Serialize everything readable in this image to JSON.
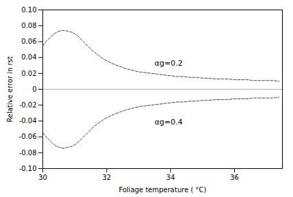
{
  "chart_data": {
    "type": "line",
    "xlabel": "Foliage temperature ( °C)",
    "ylabel": "Relative error in rst",
    "xlim": [
      30,
      37.5
    ],
    "ylim": [
      -0.1,
      0.1
    ],
    "xticks": [
      30,
      32,
      34,
      36
    ],
    "yticks": [
      {
        "value": -0.1,
        "label": "-0.10"
      },
      -0.08,
      -0.06,
      -0.04,
      -0.02,
      0,
      0.02,
      0.04,
      0.06,
      0.08,
      {
        "value": 0.1,
        "label": "0.10"
      }
    ],
    "x": [
      30.0,
      30.1,
      30.2,
      30.3,
      30.4,
      30.5,
      30.6,
      30.7,
      30.8,
      30.9,
      31.0,
      31.1,
      31.2,
      31.3,
      31.4,
      31.5,
      31.6,
      31.7,
      31.8,
      31.9,
      32.0,
      32.2,
      32.4,
      32.6,
      32.8,
      33.0,
      33.2,
      33.4,
      33.6,
      33.8,
      34.0,
      34.2,
      34.4,
      34.6,
      34.8,
      35.0,
      35.2,
      35.4,
      35.6,
      35.8,
      36.0,
      36.2,
      36.4,
      36.6,
      36.8,
      37.0,
      37.2,
      37.4
    ],
    "series": [
      {
        "color": "#444444",
        "line_style": "dashed",
        "values": [
          0.055,
          0.06,
          0.064,
          0.068,
          0.071,
          0.073,
          0.074,
          0.074,
          0.073,
          0.072,
          0.07,
          0.067,
          0.063,
          0.059,
          0.055,
          0.051,
          0.047,
          0.044,
          0.041,
          0.038,
          0.036,
          0.032,
          0.029,
          0.026,
          0.024,
          0.022,
          0.021,
          0.02,
          0.019,
          0.018,
          0.017,
          0.016,
          0.016,
          0.015,
          0.015,
          0.014,
          0.014,
          0.013,
          0.013,
          0.013,
          0.012,
          0.012,
          0.012,
          0.011,
          0.011,
          0.011,
          0.011,
          0.01
        ]
      },
      {
        "color": "#444444",
        "line_style": "dashed",
        "values": [
          -0.055,
          -0.06,
          -0.064,
          -0.068,
          -0.071,
          -0.073,
          -0.074,
          -0.074,
          -0.073,
          -0.072,
          -0.07,
          -0.067,
          -0.063,
          -0.059,
          -0.055,
          -0.051,
          -0.047,
          -0.044,
          -0.041,
          -0.038,
          -0.036,
          -0.032,
          -0.029,
          -0.026,
          -0.024,
          -0.022,
          -0.021,
          -0.02,
          -0.019,
          -0.018,
          -0.017,
          -0.016,
          -0.016,
          -0.015,
          -0.015,
          -0.014,
          -0.014,
          -0.013,
          -0.013,
          -0.013,
          -0.012,
          -0.012,
          -0.012,
          -0.011,
          -0.011,
          -0.011,
          -0.011,
          -0.01
        ]
      }
    ],
    "annotations": [
      {
        "text": "αg=0.2",
        "x": 33.5,
        "y": 0.033
      },
      {
        "text": "αg=0.4",
        "x": 33.5,
        "y": -0.041
      }
    ],
    "hline": {
      "y": 0,
      "color": "#999999"
    }
  }
}
